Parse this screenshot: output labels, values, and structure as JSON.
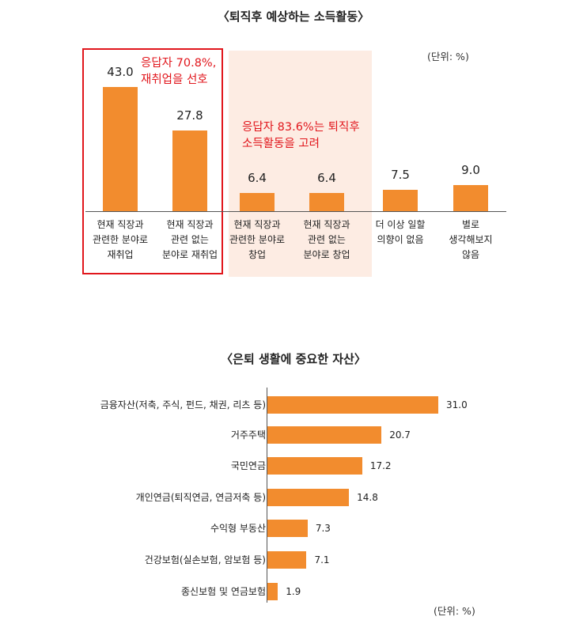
{
  "chart_data": [
    {
      "type": "bar",
      "title": "〈퇴직후 예상하는 소득활동〉",
      "unit": "(단위: %)",
      "categories": [
        "현재 직장과\n관련한 분야로\n재취업",
        "현재 직장과\n관련 없는\n분야로 재취업",
        "현재 직장과\n관련한 분야로\n창업",
        "현재 직장과\n관련 없는\n분야로 창업",
        "더 이상 일할\n의향이 없음",
        "별로\n생각해보지\n않음"
      ],
      "values": [
        43.0,
        27.8,
        6.4,
        6.4,
        7.5,
        9.0
      ],
      "value_labels": [
        "43.0",
        "27.8",
        "6.4",
        "6.4",
        "7.5",
        "9.0"
      ],
      "ylim": [
        0,
        50
      ],
      "annotations": [
        {
          "text": "응답자 70.8%,\n재취업을 선호",
          "color": "#e1161c",
          "groups": [
            0,
            1
          ]
        },
        {
          "text": "응답자 83.6%는 퇴직후\n소득활동을 고려",
          "color": "#e1161c",
          "groups": [
            2,
            3
          ]
        }
      ],
      "bar_color": "#f28c2e",
      "highlight_color": "#fdece3",
      "box_color": "#e1161c",
      "grid": false
    },
    {
      "type": "bar",
      "orientation": "horizontal",
      "title": "〈은퇴 생활에 중요한 자산〉",
      "unit": "(단위: %)",
      "categories": [
        "금융자산(저축, 주식, 펀드, 채권, 리츠 등)",
        "거주주택",
        "국민연금",
        "개인연금(퇴직연금, 연금저축 등)",
        "수익형 부동산",
        "건강보험(실손보험, 암보험 등)",
        "종신보험 및 연금보험"
      ],
      "values": [
        31.0,
        20.7,
        17.2,
        14.8,
        7.3,
        7.1,
        1.9
      ],
      "value_labels": [
        "31.0",
        "20.7",
        "17.2",
        "14.8",
        "7.3",
        "7.1",
        "1.9"
      ],
      "xlim": [
        0,
        35
      ],
      "bar_color": "#f28c2e",
      "grid": false
    }
  ]
}
